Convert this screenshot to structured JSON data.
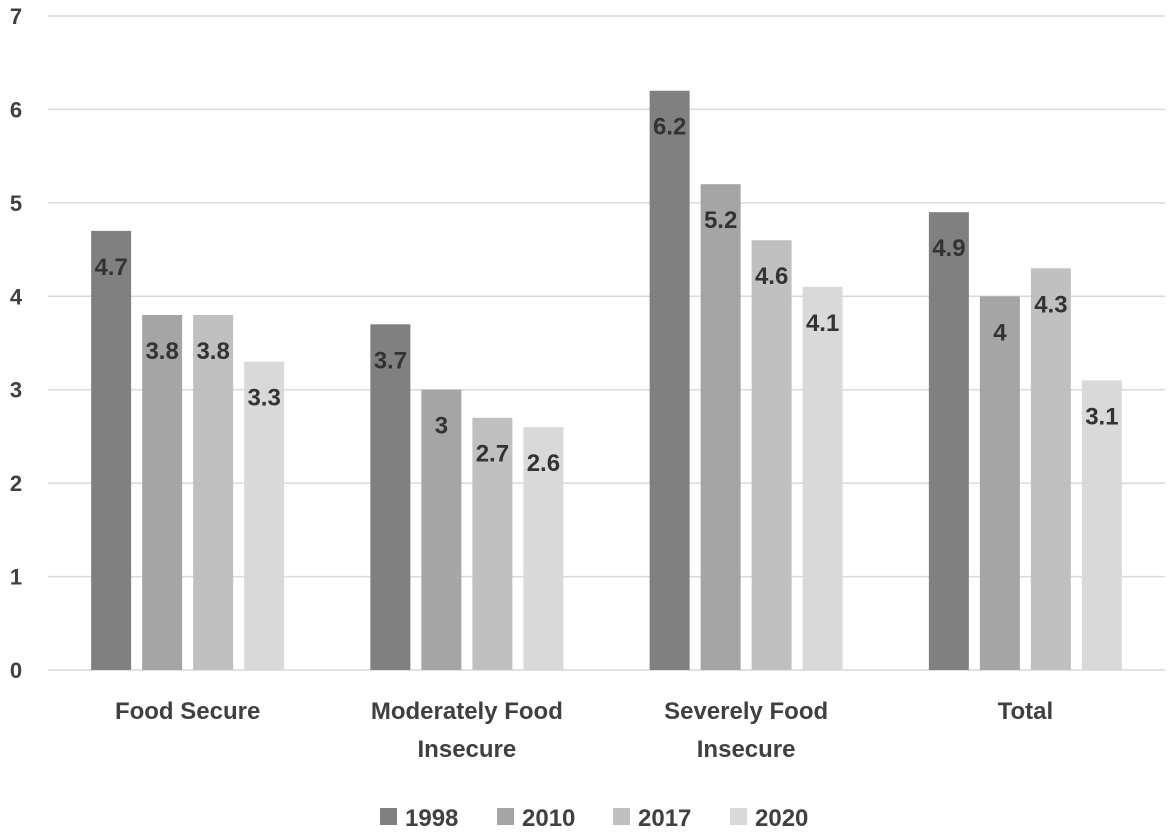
{
  "chart_data": {
    "type": "bar",
    "title": "",
    "xlabel": "",
    "ylabel": "",
    "ylim": [
      0,
      7
    ],
    "yticks": [
      0,
      1,
      2,
      3,
      4,
      5,
      6,
      7
    ],
    "grid": true,
    "legend_position": "bottom",
    "categories": [
      [
        "Food Secure"
      ],
      [
        "Moderately Food",
        "Insecure"
      ],
      [
        "Severely Food",
        "Insecure"
      ],
      [
        "Total"
      ]
    ],
    "series": [
      {
        "name": "1998",
        "color": "#808080",
        "values": [
          4.7,
          3.7,
          6.2,
          4.9
        ]
      },
      {
        "name": "2010",
        "color": "#a5a5a5",
        "values": [
          3.8,
          3,
          5.2,
          4
        ]
      },
      {
        "name": "2017",
        "color": "#c0c0c0",
        "values": [
          3.8,
          2.7,
          4.6,
          4.3
        ]
      },
      {
        "name": "2020",
        "color": "#d9d9d9",
        "values": [
          3.3,
          2.6,
          4.1,
          3.1
        ]
      }
    ]
  }
}
